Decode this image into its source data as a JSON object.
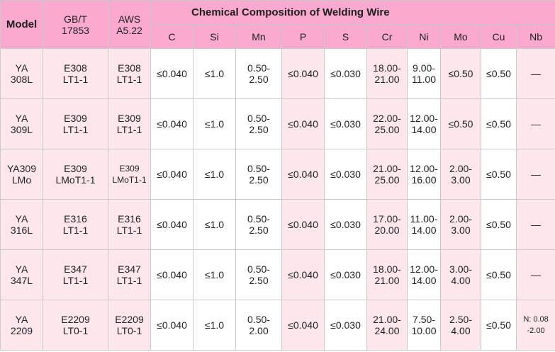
{
  "header": {
    "model": "Model",
    "gbt": [
      "GB/T",
      "17853"
    ],
    "aws": [
      "AWS",
      "A5.22"
    ],
    "title": "Chemical Composition of Welding Wire",
    "elements": [
      "C",
      "Si",
      "Mn",
      "P",
      "S",
      "Cr",
      "Ni",
      "Mo",
      "Cu",
      "Nb"
    ]
  },
  "rows": [
    {
      "model": [
        "YA",
        "308L"
      ],
      "gbt": [
        "E308",
        "LT1-1"
      ],
      "aws": [
        "E308",
        "LT1-1"
      ],
      "C": "≤0.040",
      "Si": "≤1.0",
      "Mn": [
        "0.50-",
        "2.50"
      ],
      "P": "≤0.040",
      "S": "≤0.030",
      "Cr": [
        "18.00-",
        "21.00"
      ],
      "Ni": [
        "9.00-",
        "11.00"
      ],
      "Mo": "≤0.50",
      "Cu": "≤0.50",
      "Nb": "—"
    },
    {
      "model": [
        "YA",
        "309L"
      ],
      "gbt": [
        "E309",
        "LT1-1"
      ],
      "aws": [
        "E309",
        "LT1-1"
      ],
      "C": "≤0.040",
      "Si": "≤1.0",
      "Mn": [
        "0.50-",
        "2.50"
      ],
      "P": "≤0.040",
      "S": "≤0.030",
      "Cr": [
        "22.00-",
        "25.00"
      ],
      "Ni": [
        "12.00-",
        "14.00"
      ],
      "Mo": "≤0.50",
      "Cu": "≤0.50",
      "Nb": "—"
    },
    {
      "model": [
        "YA309",
        "LMo"
      ],
      "gbt": [
        "E309",
        "LMoT1-1"
      ],
      "aws": [
        "E309",
        "LMoT1-1"
      ],
      "C": "≤0.040",
      "Si": "≤1.0",
      "Mn": [
        "0.50-",
        "2.50"
      ],
      "P": "≤0.040",
      "S": "≤0.030",
      "Cr": [
        "21.00-",
        "25.00"
      ],
      "Ni": [
        "12.00-",
        "16.00"
      ],
      "Mo": [
        "2.00-",
        "3.00"
      ],
      "Cu": "≤0.50",
      "Nb": "—"
    },
    {
      "model": [
        "YA",
        "316L"
      ],
      "gbt": [
        "E316",
        "LT1-1"
      ],
      "aws": [
        "E316",
        "LT1-1"
      ],
      "C": "≤0.040",
      "Si": "≤1.0",
      "Mn": [
        "0.50-",
        "2.50"
      ],
      "P": "≤0.040",
      "S": "≤0.030",
      "Cr": [
        "17.00-",
        "20.00"
      ],
      "Ni": [
        "11.00-",
        "14.00"
      ],
      "Mo": [
        "2.00-",
        "3.00"
      ],
      "Cu": "≤0.50",
      "Nb": "—"
    },
    {
      "model": [
        "YA",
        "347L"
      ],
      "gbt": [
        "E347",
        "LT1-1"
      ],
      "aws": [
        "E347",
        "LT1-1"
      ],
      "C": "≤0.040",
      "Si": "≤1.0",
      "Mn": [
        "0.50-",
        "2.50"
      ],
      "P": "≤0.040",
      "S": "≤0.030",
      "Cr": [
        "18.00-",
        "21.00"
      ],
      "Ni": [
        "12.00-",
        "14.00"
      ],
      "Mo": [
        "3.00-",
        "4.00"
      ],
      "Cu": "≤0.50",
      "Nb": "—"
    },
    {
      "model": [
        "YA",
        "2209"
      ],
      "gbt": [
        "E2209",
        "LT0-1"
      ],
      "aws": [
        "E2209",
        "LT0-1"
      ],
      "C": "≤0.040",
      "Si": "≤1.0",
      "Mn": [
        "0.50-",
        "2.00"
      ],
      "P": "≤0.040",
      "S": "≤0.030",
      "Cr": [
        "21.00-",
        "24.00"
      ],
      "Ni": [
        "7.50-",
        "10.00"
      ],
      "Mo": [
        "2.50-",
        "4.00"
      ],
      "Cu": "≤0.50",
      "Nb": [
        "N: 0.08",
        "-2.00"
      ]
    }
  ],
  "colors": {
    "header_bg": "#fba9cf",
    "pink_cell": "#fde6ec",
    "white_cell": "#ffffff",
    "border": "#c9c9c9"
  }
}
